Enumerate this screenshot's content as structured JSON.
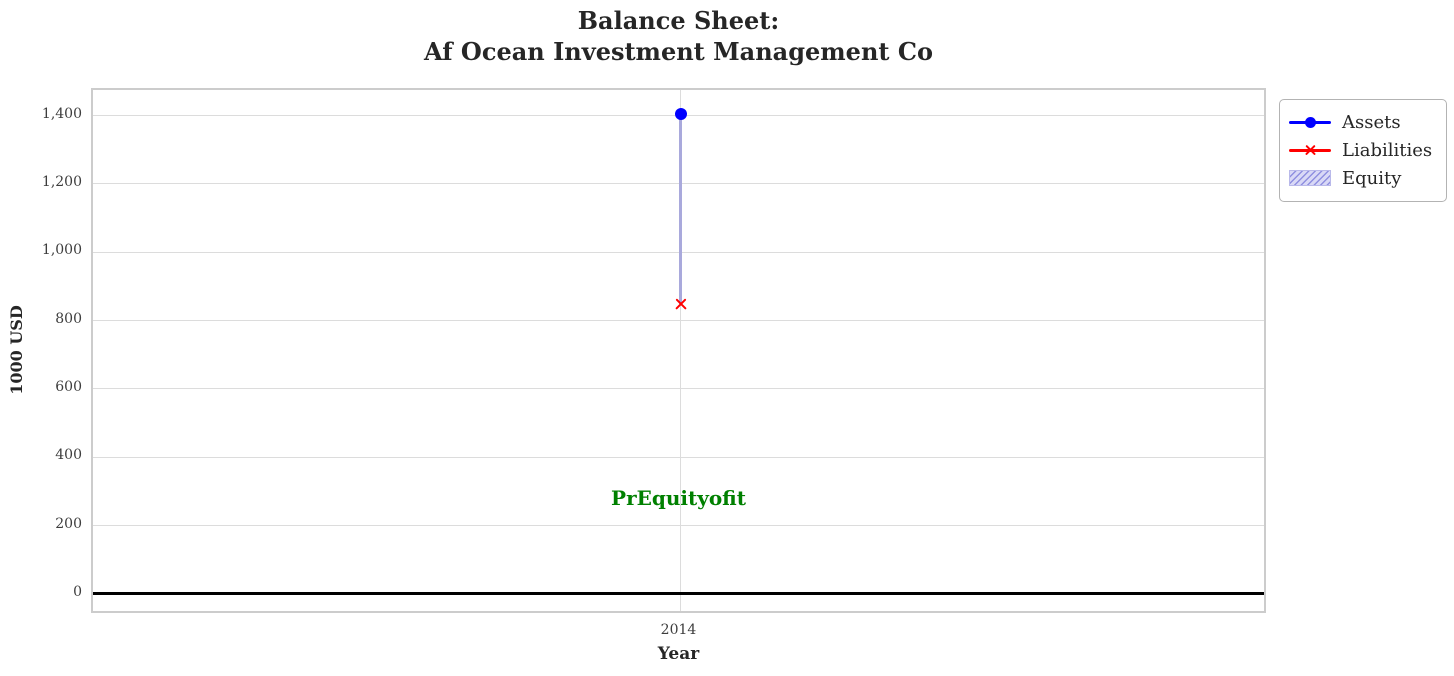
{
  "chart_data": {
    "type": "line",
    "title": "Balance Sheet:\nAf Ocean Investment Management Co",
    "title_lines": [
      "Balance Sheet:",
      "Af Ocean Investment Management Co"
    ],
    "xlabel": "Year",
    "ylabel": "1000 USD",
    "x": [
      2014
    ],
    "xtick_labels": [
      "2014"
    ],
    "series": [
      {
        "name": "Assets",
        "type": "line-marker",
        "marker": "circle",
        "color": "#0000ff",
        "values": [
          1405
        ]
      },
      {
        "name": "Liabilities",
        "type": "line-marker",
        "marker": "x",
        "color": "#ff0000",
        "values": [
          848
        ]
      },
      {
        "name": "Equity",
        "type": "band",
        "color": "#a9a9dc",
        "hatch": "///",
        "values": [
          557
        ],
        "band_lower": 848,
        "band_upper": 1405
      }
    ],
    "ylim": [
      -62,
      1475
    ],
    "yticks": [
      0,
      200,
      400,
      600,
      800,
      1000,
      1200,
      1400
    ],
    "ytick_labels": [
      "0",
      "200",
      "400",
      "600",
      "800",
      "1,000",
      "1,200",
      "1,400"
    ],
    "grid": true,
    "zero_line": {
      "value": 0,
      "color": "#000000"
    },
    "annotation": {
      "text": "PrEquityofit",
      "color": "#008000",
      "x": 2014,
      "y": 280
    },
    "legend": {
      "position": "outside-top-right",
      "entries": [
        "Assets",
        "Liabilities",
        "Equity"
      ]
    }
  }
}
